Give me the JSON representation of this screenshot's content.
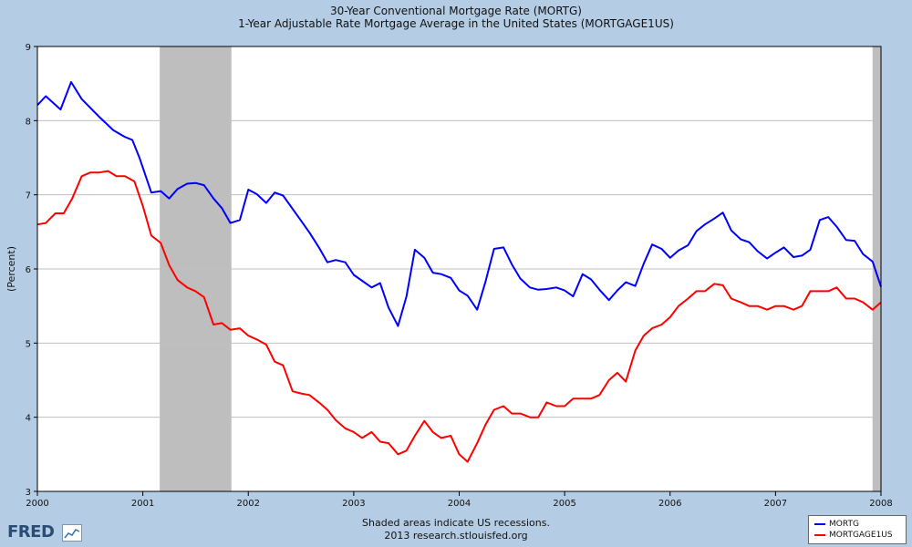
{
  "titles": {
    "line1": "30-Year Conventional Mortgage Rate (MORTG)",
    "line2": "1-Year Adjustable Rate Mortgage Average in the United States (MORTGAGE1US)"
  },
  "footer": {
    "note1": "Shaded areas indicate US recessions.",
    "note2": "2013 research.stlouisfed.org",
    "logo": "FRED"
  },
  "colors": {
    "plot_bg": "#ffffff",
    "recession": "#bebebe",
    "mortg": "#0000ff",
    "arm": "#ff0000",
    "grid": "#c0c0c0"
  },
  "chart_data": {
    "type": "line",
    "ylabel": "(Percent)",
    "xlim": [
      2000,
      2008
    ],
    "ylim": [
      3,
      9
    ],
    "y_ticks": [
      "3",
      "4",
      "5",
      "6",
      "7",
      "8",
      "9"
    ],
    "x_ticks": [
      "2000",
      "2001",
      "2002",
      "2003",
      "2004",
      "2005",
      "2006",
      "2007",
      "2008"
    ],
    "grid": true,
    "legend_position": "bottom-right",
    "recessions": [
      [
        2001.16,
        2001.84
      ],
      [
        2007.92,
        2008.0
      ]
    ],
    "series": [
      {
        "name": "MORTG",
        "color": "#0000ff",
        "x": [
          2000.0,
          2000.08,
          2000.22,
          2000.32,
          2000.42,
          2000.58,
          2000.72,
          2000.83,
          2000.9,
          2000.97,
          2001.08,
          2001.17,
          2001.25,
          2001.33,
          2001.42,
          2001.5,
          2001.58,
          2001.67,
          2001.75,
          2001.83,
          2001.92,
          2002.0,
          2002.08,
          2002.17,
          2002.25,
          2002.33,
          2002.42,
          2002.5,
          2002.58,
          2002.67,
          2002.75,
          2002.83,
          2002.92,
          2003.0,
          2003.08,
          2003.17,
          2003.25,
          2003.33,
          2003.42,
          2003.5,
          2003.58,
          2003.67,
          2003.75,
          2003.83,
          2003.92,
          2004.0,
          2004.08,
          2004.17,
          2004.25,
          2004.33,
          2004.42,
          2004.5,
          2004.58,
          2004.67,
          2004.75,
          2004.83,
          2004.92,
          2005.0,
          2005.08,
          2005.17,
          2005.25,
          2005.33,
          2005.42,
          2005.5,
          2005.58,
          2005.67,
          2005.75,
          2005.83,
          2005.92,
          2006.0,
          2006.08,
          2006.17,
          2006.25,
          2006.33,
          2006.42,
          2006.5,
          2006.58,
          2006.67,
          2006.75,
          2006.83,
          2006.92,
          2007.0,
          2007.08,
          2007.17,
          2007.25,
          2007.33,
          2007.42,
          2007.5,
          2007.58,
          2007.67,
          2007.75,
          2007.83,
          2007.92,
          2008.0
        ],
        "values": [
          8.21,
          8.33,
          8.15,
          8.52,
          8.29,
          8.06,
          7.87,
          7.78,
          7.74,
          7.49,
          7.03,
          7.05,
          6.95,
          7.08,
          7.15,
          7.16,
          7.13,
          6.95,
          6.82,
          6.62,
          6.66,
          7.07,
          7.01,
          6.89,
          7.03,
          6.99,
          6.81,
          6.65,
          6.49,
          6.29,
          6.09,
          6.12,
          6.09,
          5.92,
          5.84,
          5.75,
          5.81,
          5.48,
          5.23,
          5.63,
          6.26,
          6.15,
          5.95,
          5.93,
          5.88,
          5.71,
          5.64,
          5.45,
          5.83,
          6.27,
          6.29,
          6.06,
          5.87,
          5.75,
          5.72,
          5.73,
          5.75,
          5.71,
          5.63,
          5.93,
          5.86,
          5.72,
          5.58,
          5.71,
          5.82,
          5.77,
          6.07,
          6.33,
          6.27,
          6.15,
          6.25,
          6.32,
          6.51,
          6.6,
          6.68,
          6.76,
          6.52,
          6.4,
          6.36,
          6.24,
          6.14,
          6.22,
          6.29,
          6.16,
          6.18,
          6.26,
          6.66,
          6.7,
          6.57,
          6.39,
          6.38,
          6.2,
          6.1,
          5.76
        ]
      },
      {
        "name": "MORTGAGE1US",
        "color": "#ff0000",
        "x": [
          2000.0,
          2000.08,
          2000.17,
          2000.25,
          2000.33,
          2000.42,
          2000.5,
          2000.58,
          2000.67,
          2000.75,
          2000.83,
          2000.92,
          2001.0,
          2001.08,
          2001.17,
          2001.25,
          2001.33,
          2001.42,
          2001.5,
          2001.58,
          2001.67,
          2001.75,
          2001.83,
          2001.92,
          2002.0,
          2002.08,
          2002.17,
          2002.25,
          2002.33,
          2002.42,
          2002.5,
          2002.58,
          2002.67,
          2002.75,
          2002.83,
          2002.92,
          2003.0,
          2003.08,
          2003.17,
          2003.25,
          2003.33,
          2003.42,
          2003.5,
          2003.58,
          2003.67,
          2003.75,
          2003.83,
          2003.92,
          2004.0,
          2004.08,
          2004.17,
          2004.25,
          2004.33,
          2004.42,
          2004.5,
          2004.58,
          2004.67,
          2004.75,
          2004.83,
          2004.92,
          2005.0,
          2005.08,
          2005.17,
          2005.25,
          2005.33,
          2005.42,
          2005.5,
          2005.58,
          2005.67,
          2005.75,
          2005.83,
          2005.92,
          2006.0,
          2006.08,
          2006.17,
          2006.25,
          2006.33,
          2006.42,
          2006.5,
          2006.58,
          2006.67,
          2006.75,
          2006.83,
          2006.92,
          2007.0,
          2007.08,
          2007.17,
          2007.25,
          2007.33,
          2007.42,
          2007.5,
          2007.58,
          2007.67,
          2007.75,
          2007.83,
          2007.92,
          2008.0
        ],
        "values": [
          6.6,
          6.62,
          6.75,
          6.75,
          6.95,
          7.25,
          7.3,
          7.3,
          7.32,
          7.25,
          7.25,
          7.18,
          6.85,
          6.45,
          6.35,
          6.05,
          5.85,
          5.75,
          5.7,
          5.62,
          5.25,
          5.27,
          5.18,
          5.2,
          5.1,
          5.05,
          4.98,
          4.75,
          4.7,
          4.35,
          4.32,
          4.3,
          4.2,
          4.1,
          3.96,
          3.85,
          3.8,
          3.72,
          3.8,
          3.67,
          3.65,
          3.5,
          3.55,
          3.75,
          3.95,
          3.8,
          3.72,
          3.75,
          3.5,
          3.4,
          3.65,
          3.9,
          4.1,
          4.15,
          4.05,
          4.05,
          4.0,
          4.0,
          4.2,
          4.15,
          4.15,
          4.25,
          4.25,
          4.25,
          4.3,
          4.5,
          4.6,
          4.48,
          4.9,
          5.1,
          5.2,
          5.25,
          5.35,
          5.5,
          5.6,
          5.7,
          5.7,
          5.8,
          5.78,
          5.6,
          5.55,
          5.5,
          5.5,
          5.45,
          5.5,
          5.5,
          5.45,
          5.5,
          5.7,
          5.7,
          5.7,
          5.75,
          5.6,
          5.6,
          5.55,
          5.45,
          5.55
        ]
      }
    ]
  }
}
